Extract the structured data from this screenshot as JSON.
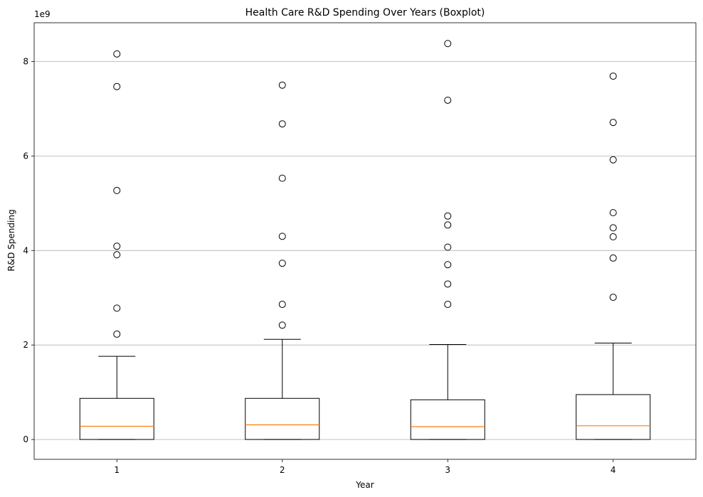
{
  "chart_data": {
    "type": "boxplot",
    "title": "Health Care R&D Spending Over Years (Boxplot)",
    "xlabel": "Year",
    "ylabel": "R&D Spending",
    "y_offset_label": "1e9",
    "y_unit_multiplier": 1000000000,
    "categories": [
      "1",
      "2",
      "3",
      "4"
    ],
    "ylim": [
      -0.42,
      8.82
    ],
    "yticks": [
      0,
      2,
      4,
      6,
      8
    ],
    "grid": "y-major",
    "boxes": [
      {
        "category": "1",
        "whisker_low": 0.0,
        "q1": 0.0,
        "median": 0.28,
        "q3": 0.87,
        "whisker_high": 1.76,
        "outliers": [
          2.23,
          2.78,
          3.91,
          4.09,
          5.27,
          7.47,
          8.16
        ]
      },
      {
        "category": "2",
        "whisker_low": 0.0,
        "q1": 0.0,
        "median": 0.31,
        "q3": 0.87,
        "whisker_high": 2.12,
        "outliers": [
          2.42,
          2.86,
          3.73,
          4.3,
          5.53,
          6.68,
          7.5
        ]
      },
      {
        "category": "3",
        "whisker_low": 0.0,
        "q1": 0.0,
        "median": 0.27,
        "q3": 0.84,
        "whisker_high": 2.01,
        "outliers": [
          2.86,
          3.29,
          3.7,
          4.07,
          4.54,
          4.73,
          7.18,
          8.38
        ]
      },
      {
        "category": "4",
        "whisker_low": 0.0,
        "q1": 0.0,
        "median": 0.29,
        "q3": 0.95,
        "whisker_high": 2.04,
        "outliers": [
          3.01,
          3.84,
          4.29,
          4.48,
          4.8,
          5.92,
          6.71,
          7.69
        ]
      }
    ],
    "colors": {
      "box": "#000000",
      "median": "#ff7f0e",
      "grid": "#b0b0b0",
      "outlier_fill": "none"
    }
  }
}
